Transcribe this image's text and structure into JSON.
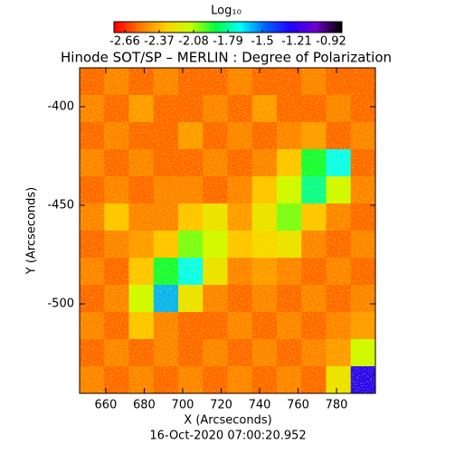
{
  "chart_data": {
    "type": "heatmap",
    "title": "Hinode SOT/SP – MERLIN : Degree of Polarization",
    "xlabel": "X (Arcseconds)",
    "ylabel": "Y (Arcseconds)",
    "footer": "16-Oct-2020 07:00:20.952",
    "colorbar": {
      "label": "Log₁₀",
      "lim": [
        -2.66,
        -0.92
      ],
      "ticks": [
        -2.66,
        -2.37,
        -2.08,
        -1.79,
        -1.5,
        -1.21,
        -0.92
      ],
      "colormap": [
        "#ff0000",
        "#ff7a00",
        "#ffd000",
        "#c8ff00",
        "#00ff40",
        "#00ffff",
        "#0060ff",
        "#2000ff",
        "#7000d0",
        "#000000"
      ]
    },
    "xlim": [
      646.4,
      800.2
    ],
    "xticks": [
      660,
      680,
      700,
      720,
      740,
      760,
      780
    ],
    "ylim": [
      -545.4,
      -380.3
    ],
    "yticks": [
      -400,
      -450,
      -500
    ],
    "z": [
      [
        -2.5,
        -2.45,
        -2.5,
        -2.45,
        -2.5,
        -2.5,
        -2.45,
        -2.5,
        -2.5,
        -2.45,
        -2.5,
        -2.5
      ],
      [
        -2.45,
        -2.5,
        -2.4,
        -2.5,
        -2.5,
        -2.45,
        -2.5,
        -2.4,
        -2.5,
        -2.5,
        -2.45,
        -2.5
      ],
      [
        -2.5,
        -2.45,
        -2.5,
        -2.5,
        -2.4,
        -2.5,
        -2.45,
        -2.5,
        -2.45,
        -2.4,
        -2.5,
        -2.45
      ],
      [
        -2.45,
        -2.5,
        -2.45,
        -2.5,
        -2.5,
        -2.45,
        -2.5,
        -2.45,
        -2.3,
        -1.9,
        -1.7,
        -2.5
      ],
      [
        -2.5,
        -2.45,
        -2.5,
        -2.45,
        -2.45,
        -2.5,
        -2.45,
        -2.3,
        -2.1,
        -1.8,
        -2.1,
        -2.45
      ],
      [
        -2.45,
        -2.3,
        -2.45,
        -2.45,
        -2.3,
        -2.2,
        -2.4,
        -2.2,
        -2.0,
        -2.3,
        -2.45,
        -2.5
      ],
      [
        -2.5,
        -2.45,
        -2.4,
        -2.3,
        -2.0,
        -2.1,
        -2.3,
        -2.25,
        -2.2,
        -2.45,
        -2.5,
        -2.45
      ],
      [
        -2.45,
        -2.5,
        -2.3,
        -1.9,
        -1.7,
        -2.2,
        -2.45,
        -2.4,
        -2.45,
        -2.5,
        -2.45,
        -2.5
      ],
      [
        -2.5,
        -2.45,
        -2.1,
        -1.6,
        -2.2,
        -2.45,
        -2.5,
        -2.45,
        -2.5,
        -2.45,
        -2.5,
        -2.45
      ],
      [
        -2.45,
        -2.5,
        -2.3,
        -2.45,
        -2.5,
        -2.5,
        -2.45,
        -2.5,
        -2.45,
        -2.5,
        -2.45,
        -2.4
      ],
      [
        -2.5,
        -2.45,
        -2.5,
        -2.45,
        -2.5,
        -2.45,
        -2.5,
        -2.45,
        -2.5,
        -2.45,
        -2.4,
        -2.1
      ],
      [
        -2.45,
        -2.5,
        -2.45,
        -2.5,
        -2.45,
        -2.5,
        -2.45,
        -2.5,
        -2.45,
        -2.5,
        -2.2,
        -1.3
      ]
    ]
  }
}
